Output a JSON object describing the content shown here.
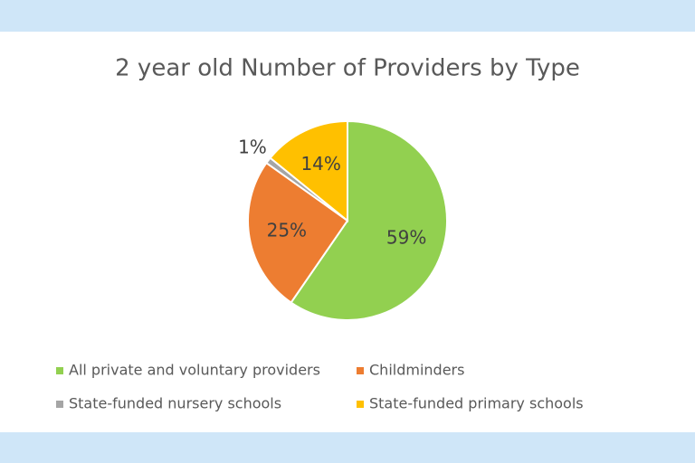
{
  "chart_data": {
    "type": "pie",
    "title": "2 year old Number of Providers by Type",
    "categories": [
      "All private and voluntary providers",
      "Childminders",
      "State-funded nursery schools",
      "State-funded primary schools"
    ],
    "values": [
      59,
      25,
      1,
      14
    ],
    "value_labels": [
      "59%",
      "25%",
      "1%",
      "14%"
    ],
    "colors": [
      "#92d050",
      "#ed7d31",
      "#a5a5a5",
      "#ffc000"
    ],
    "legend": "bottom"
  }
}
